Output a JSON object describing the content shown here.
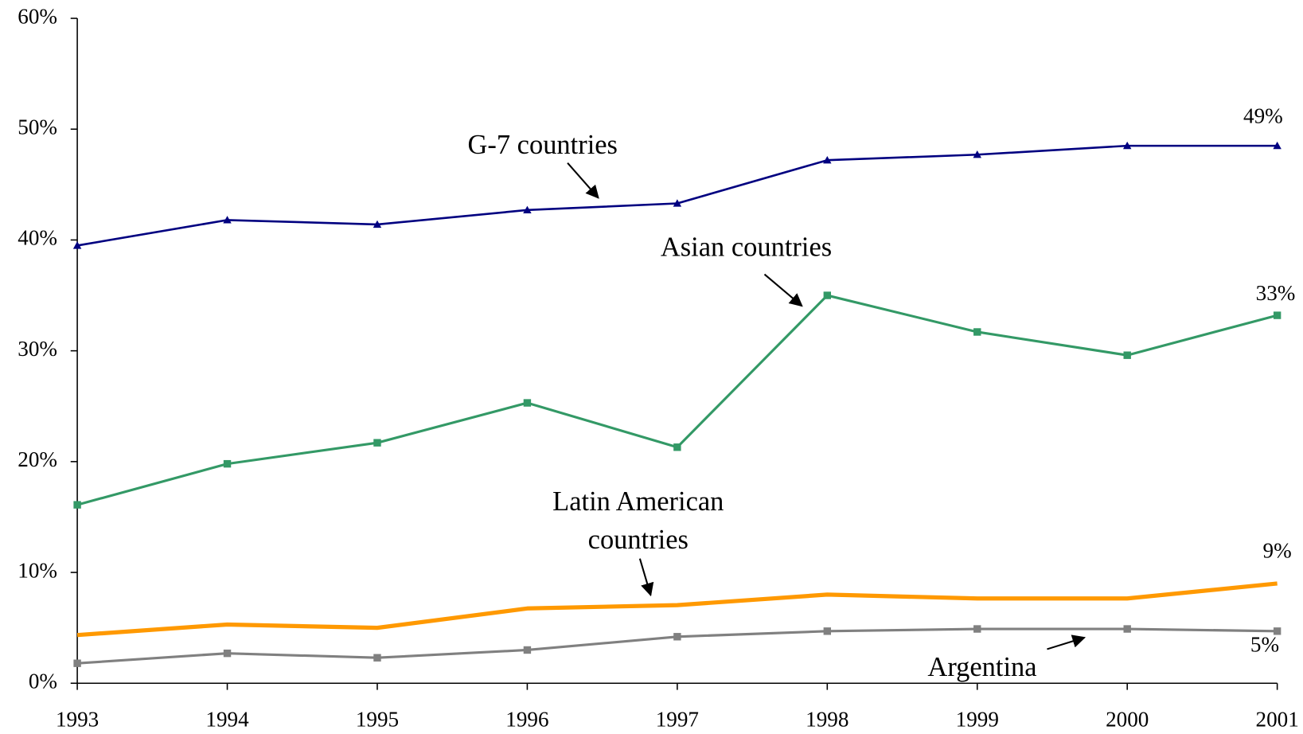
{
  "chart_data": {
    "type": "line",
    "categories": [
      "1993",
      "1994",
      "1995",
      "1996",
      "1997",
      "1998",
      "1999",
      "2000",
      "2001"
    ],
    "ylim": [
      0,
      60
    ],
    "yticks": [
      {
        "value": 0,
        "label": "0%"
      },
      {
        "value": 10,
        "label": "10%"
      },
      {
        "value": 20,
        "label": "20%"
      },
      {
        "value": 30,
        "label": "30%"
      },
      {
        "value": 40,
        "label": "40%"
      },
      {
        "value": 50,
        "label": "50%"
      },
      {
        "value": 60,
        "label": "60%"
      }
    ],
    "series": [
      {
        "name": "G-7 countries",
        "color": "#000080",
        "marker": "triangle",
        "values": [
          39.5,
          41.8,
          41.4,
          42.7,
          43.3,
          47.2,
          47.7,
          48.5,
          48.5
        ],
        "value_labels": [
          null,
          null,
          null,
          null,
          null,
          null,
          null,
          null,
          "49%"
        ]
      },
      {
        "name": "Asian countries",
        "color": "#339966",
        "marker": "square",
        "values": [
          16.1,
          19.8,
          21.7,
          25.3,
          21.3,
          35.0,
          31.7,
          29.6,
          33.2
        ],
        "value_labels": [
          null,
          null,
          null,
          null,
          null,
          null,
          null,
          null,
          "33%"
        ]
      },
      {
        "name": "Latin American countries",
        "color": "#ff9900",
        "marker": "none",
        "values": [
          4.35,
          5.3,
          5.0,
          6.75,
          7.05,
          8.0,
          7.65,
          7.65,
          9.0
        ],
        "value_labels": [
          null,
          null,
          null,
          null,
          null,
          null,
          null,
          null,
          "9%"
        ]
      },
      {
        "name": "Argentina",
        "color": "#808080",
        "marker": "square",
        "values": [
          1.8,
          2.7,
          2.3,
          3.0,
          4.2,
          4.7,
          4.9,
          4.9,
          4.7
        ],
        "value_labels": [
          null,
          null,
          null,
          null,
          null,
          null,
          null,
          null,
          "5%"
        ]
      }
    ]
  }
}
